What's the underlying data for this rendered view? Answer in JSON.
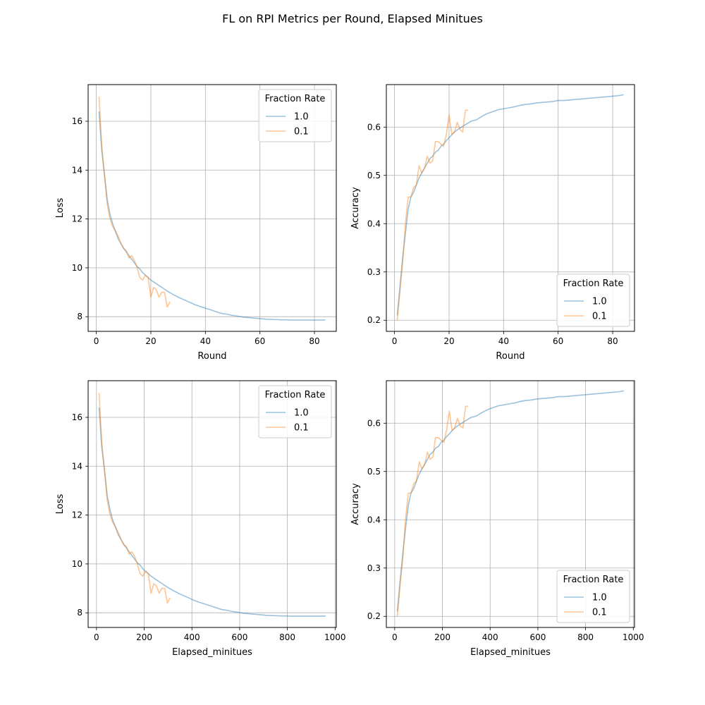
{
  "figure": {
    "title": "FL on RPI Metrics per Round, Elapsed Minitues"
  },
  "colors": {
    "series_1_0": "#1f77b4",
    "series_0_1": "#ff7f0e",
    "grid": "#b0b0b0"
  },
  "chart_data": [
    {
      "type": "line",
      "xlabel": "Round",
      "ylabel": "Loss",
      "xlim": [
        -3,
        88
      ],
      "ylim": [
        7.4,
        17.5
      ],
      "xticks": [
        0,
        20,
        40,
        60,
        80
      ],
      "yticks": [
        8,
        10,
        12,
        14,
        16
      ],
      "grid": true,
      "legend": {
        "title": "Fraction Rate",
        "placement": "top-right"
      },
      "series": [
        {
          "name": "1.0",
          "x": [
            1,
            2,
            3,
            4,
            5,
            6,
            7,
            8,
            9,
            10,
            11,
            12,
            13,
            14,
            15,
            16,
            17,
            18,
            19,
            20,
            22,
            24,
            26,
            28,
            30,
            32,
            34,
            36,
            38,
            40,
            42,
            44,
            46,
            48,
            50,
            52,
            54,
            56,
            58,
            60,
            62,
            64,
            66,
            68,
            70,
            72,
            74,
            76,
            78,
            80,
            82,
            84
          ],
          "y": [
            16.4,
            14.8,
            13.8,
            12.8,
            12.2,
            11.8,
            11.5,
            11.2,
            11.0,
            10.8,
            10.65,
            10.5,
            10.35,
            10.2,
            10.05,
            9.95,
            9.8,
            9.7,
            9.6,
            9.5,
            9.35,
            9.2,
            9.05,
            8.92,
            8.8,
            8.7,
            8.6,
            8.5,
            8.42,
            8.35,
            8.28,
            8.2,
            8.13,
            8.1,
            8.05,
            8.02,
            7.98,
            7.96,
            7.94,
            7.92,
            7.9,
            7.89,
            7.88,
            7.87,
            7.87,
            7.86,
            7.86,
            7.86,
            7.86,
            7.86,
            7.86,
            7.87
          ]
        },
        {
          "name": "0.1",
          "x": [
            1,
            2,
            3,
            4,
            5,
            6,
            7,
            8,
            9,
            10,
            11,
            12,
            13,
            14,
            15,
            16,
            17,
            18,
            19,
            20,
            21,
            22,
            23,
            24,
            25,
            26,
            27
          ],
          "y": [
            17.0,
            15.0,
            13.8,
            12.6,
            12.0,
            11.7,
            11.5,
            11.3,
            11.0,
            10.8,
            10.7,
            10.4,
            10.5,
            10.3,
            10.0,
            9.6,
            9.5,
            9.7,
            9.6,
            8.8,
            9.2,
            9.1,
            8.8,
            9.0,
            9.0,
            8.4,
            8.6
          ]
        }
      ]
    },
    {
      "type": "line",
      "xlabel": "Round",
      "ylabel": "Accuracy",
      "xlim": [
        -3,
        88
      ],
      "ylim": [
        0.177,
        0.688
      ],
      "xticks": [
        0,
        20,
        40,
        60,
        80
      ],
      "yticks": [
        0.2,
        0.3,
        0.4,
        0.5,
        0.6
      ],
      "grid": true,
      "legend": {
        "title": "Fraction Rate",
        "placement": "bottom-right"
      },
      "series": [
        {
          "name": "1.0",
          "x": [
            1,
            2,
            3,
            4,
            5,
            6,
            7,
            8,
            9,
            10,
            11,
            12,
            13,
            14,
            15,
            16,
            17,
            18,
            19,
            20,
            22,
            24,
            26,
            28,
            30,
            32,
            34,
            36,
            38,
            40,
            42,
            44,
            46,
            48,
            50,
            52,
            54,
            56,
            58,
            60,
            62,
            64,
            66,
            68,
            70,
            72,
            74,
            76,
            78,
            80,
            82,
            84
          ],
          "y": [
            0.21,
            0.27,
            0.33,
            0.38,
            0.43,
            0.455,
            0.465,
            0.48,
            0.495,
            0.505,
            0.515,
            0.525,
            0.535,
            0.54,
            0.548,
            0.552,
            0.56,
            0.565,
            0.572,
            0.578,
            0.59,
            0.598,
            0.605,
            0.612,
            0.615,
            0.622,
            0.628,
            0.632,
            0.636,
            0.638,
            0.64,
            0.642,
            0.645,
            0.647,
            0.648,
            0.65,
            0.651,
            0.652,
            0.653,
            0.655,
            0.655,
            0.656,
            0.657,
            0.658,
            0.659,
            0.66,
            0.661,
            0.662,
            0.663,
            0.664,
            0.665,
            0.667
          ]
        },
        {
          "name": "0.1",
          "x": [
            1,
            2,
            3,
            4,
            5,
            6,
            7,
            8,
            9,
            10,
            11,
            12,
            13,
            14,
            15,
            16,
            17,
            18,
            19,
            20,
            21,
            22,
            23,
            24,
            25,
            26,
            27
          ],
          "y": [
            0.2,
            0.26,
            0.32,
            0.4,
            0.455,
            0.455,
            0.475,
            0.48,
            0.52,
            0.505,
            0.515,
            0.54,
            0.525,
            0.53,
            0.57,
            0.57,
            0.565,
            0.56,
            0.585,
            0.625,
            0.585,
            0.59,
            0.61,
            0.595,
            0.59,
            0.635,
            0.635
          ]
        }
      ]
    },
    {
      "type": "line",
      "xlabel": "Elapsed_minitues",
      "ylabel": "Loss",
      "xlim": [
        -35,
        1005
      ],
      "ylim": [
        7.4,
        17.5
      ],
      "xticks": [
        0,
        200,
        400,
        600,
        800,
        1000
      ],
      "yticks": [
        8,
        10,
        12,
        14,
        16
      ],
      "grid": true,
      "legend": {
        "title": "Fraction Rate",
        "placement": "top-right"
      },
      "series": [
        {
          "name": "1.0",
          "x": [
            11,
            22,
            34,
            45,
            57,
            68,
            80,
            91,
            103,
            114,
            126,
            137,
            148,
            160,
            171,
            183,
            194,
            206,
            217,
            229,
            251,
            274,
            297,
            320,
            343,
            366,
            389,
            411,
            434,
            457,
            480,
            503,
            526,
            549,
            571,
            594,
            617,
            640,
            663,
            686,
            709,
            731,
            754,
            777,
            800,
            823,
            846,
            869,
            891,
            914,
            937,
            960
          ],
          "y": [
            16.4,
            14.8,
            13.8,
            12.8,
            12.2,
            11.8,
            11.5,
            11.2,
            11.0,
            10.8,
            10.65,
            10.5,
            10.35,
            10.2,
            10.05,
            9.95,
            9.8,
            9.7,
            9.6,
            9.5,
            9.35,
            9.2,
            9.05,
            8.92,
            8.8,
            8.7,
            8.6,
            8.5,
            8.42,
            8.35,
            8.28,
            8.2,
            8.13,
            8.1,
            8.05,
            8.02,
            7.98,
            7.96,
            7.94,
            7.92,
            7.9,
            7.89,
            7.88,
            7.87,
            7.87,
            7.86,
            7.86,
            7.86,
            7.86,
            7.86,
            7.86,
            7.87
          ]
        },
        {
          "name": "0.1",
          "x": [
            11,
            22,
            34,
            45,
            57,
            68,
            80,
            91,
            103,
            114,
            126,
            137,
            148,
            160,
            171,
            183,
            194,
            206,
            217,
            229,
            240,
            251,
            263,
            274,
            286,
            297,
            308
          ],
          "y": [
            17.0,
            15.0,
            13.8,
            12.6,
            12.0,
            11.7,
            11.5,
            11.3,
            11.0,
            10.8,
            10.7,
            10.4,
            10.5,
            10.3,
            10.0,
            9.6,
            9.5,
            9.7,
            9.6,
            8.8,
            9.2,
            9.1,
            8.8,
            9.0,
            9.0,
            8.4,
            8.6
          ]
        }
      ]
    },
    {
      "type": "line",
      "xlabel": "Elapsed_minitues",
      "ylabel": "Accuracy",
      "xlim": [
        -35,
        1005
      ],
      "ylim": [
        0.177,
        0.688
      ],
      "xticks": [
        0,
        200,
        400,
        600,
        800,
        1000
      ],
      "yticks": [
        0.2,
        0.3,
        0.4,
        0.5,
        0.6
      ],
      "grid": true,
      "legend": {
        "title": "Fraction Rate",
        "placement": "bottom-right"
      },
      "series": [
        {
          "name": "1.0",
          "x": [
            11,
            22,
            34,
            45,
            57,
            68,
            80,
            91,
            103,
            114,
            126,
            137,
            148,
            160,
            171,
            183,
            194,
            206,
            217,
            229,
            251,
            274,
            297,
            320,
            343,
            366,
            389,
            411,
            434,
            457,
            480,
            503,
            526,
            549,
            571,
            594,
            617,
            640,
            663,
            686,
            709,
            731,
            754,
            777,
            800,
            823,
            846,
            869,
            891,
            914,
            937,
            960
          ],
          "y": [
            0.21,
            0.27,
            0.33,
            0.38,
            0.43,
            0.455,
            0.465,
            0.48,
            0.495,
            0.505,
            0.515,
            0.525,
            0.535,
            0.54,
            0.548,
            0.552,
            0.56,
            0.565,
            0.572,
            0.578,
            0.59,
            0.598,
            0.605,
            0.612,
            0.615,
            0.622,
            0.628,
            0.632,
            0.636,
            0.638,
            0.64,
            0.642,
            0.645,
            0.647,
            0.648,
            0.65,
            0.651,
            0.652,
            0.653,
            0.655,
            0.655,
            0.656,
            0.657,
            0.658,
            0.659,
            0.66,
            0.661,
            0.662,
            0.663,
            0.664,
            0.665,
            0.667
          ]
        },
        {
          "name": "0.1",
          "x": [
            11,
            22,
            34,
            45,
            57,
            68,
            80,
            91,
            103,
            114,
            126,
            137,
            148,
            160,
            171,
            183,
            194,
            206,
            217,
            229,
            240,
            251,
            263,
            274,
            286,
            297,
            308
          ],
          "y": [
            0.2,
            0.26,
            0.32,
            0.4,
            0.455,
            0.455,
            0.475,
            0.48,
            0.52,
            0.505,
            0.515,
            0.54,
            0.525,
            0.53,
            0.57,
            0.57,
            0.565,
            0.56,
            0.585,
            0.625,
            0.585,
            0.59,
            0.61,
            0.595,
            0.59,
            0.635,
            0.635
          ]
        }
      ]
    }
  ]
}
